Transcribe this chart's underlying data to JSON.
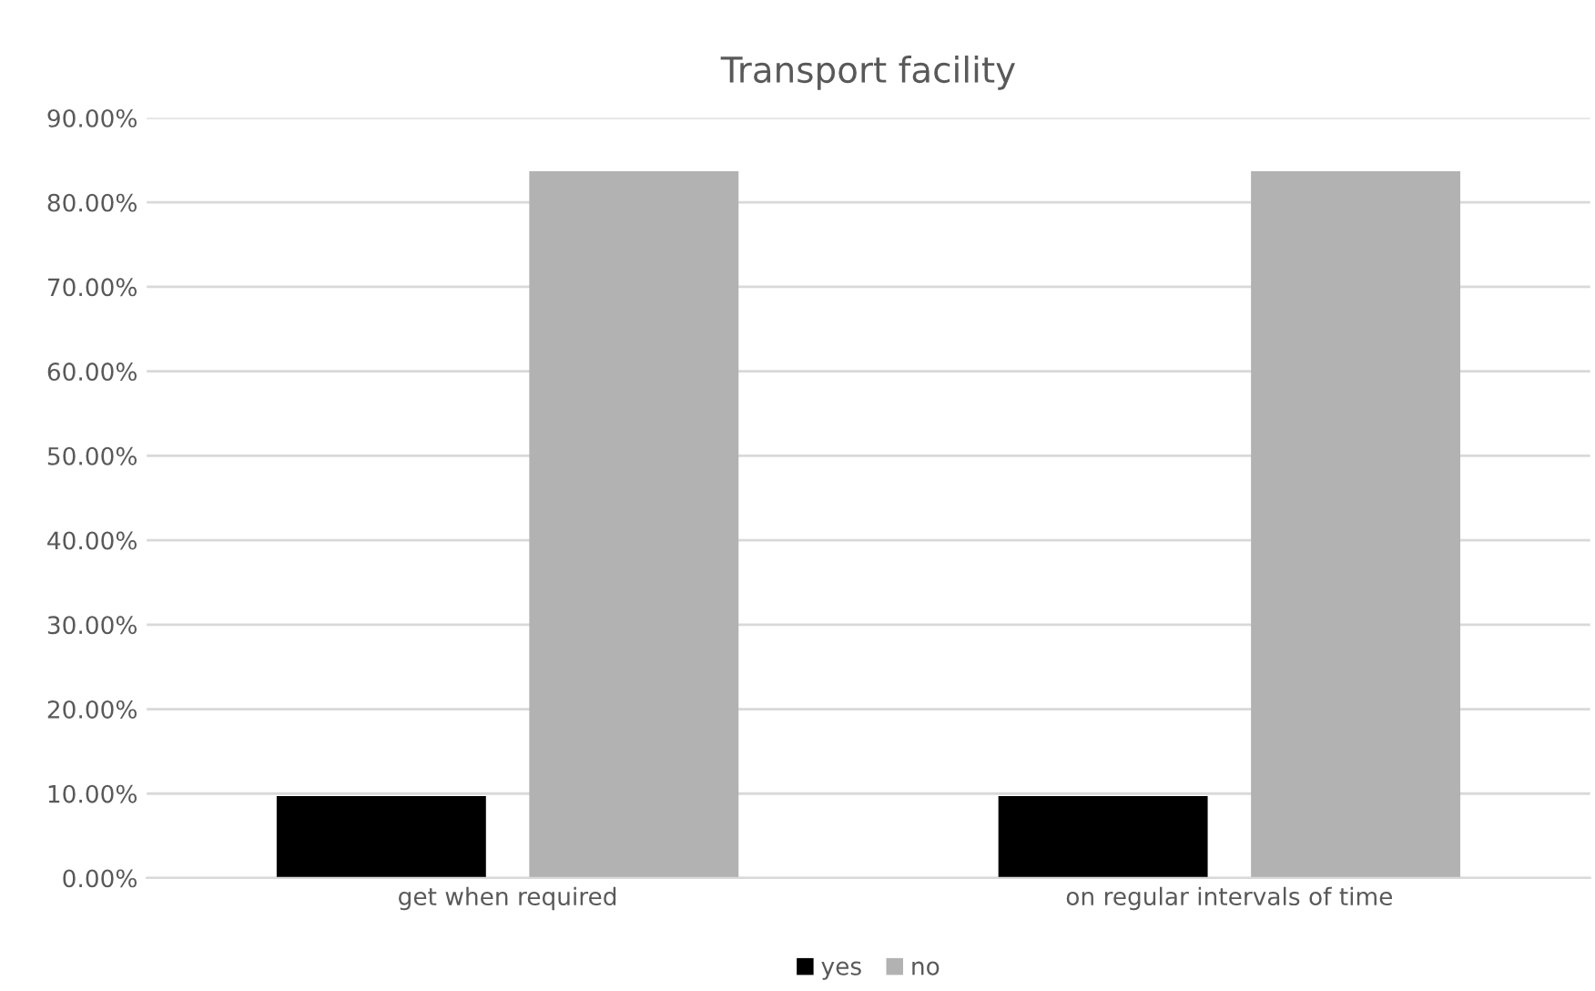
{
  "chart_data": {
    "type": "bar",
    "title": "Transport facility",
    "categories": [
      "get when required",
      "on regular intervals of time"
    ],
    "series": [
      {
        "name": "yes",
        "color": "#000000",
        "values": [
          9.7,
          9.7
        ]
      },
      {
        "name": "no",
        "color": "#b2b2b2",
        "values": [
          83.7,
          83.7
        ]
      }
    ],
    "ylim": [
      0,
      90
    ],
    "yticks": [
      {
        "value": 0,
        "label": "0.00%"
      },
      {
        "value": 10,
        "label": "10.00%"
      },
      {
        "value": 20,
        "label": "20.00%"
      },
      {
        "value": 30,
        "label": "30.00%"
      },
      {
        "value": 40,
        "label": "40.00%"
      },
      {
        "value": 50,
        "label": "50.00%"
      },
      {
        "value": 60,
        "label": "60.00%"
      },
      {
        "value": 70,
        "label": "70.00%"
      },
      {
        "value": 80,
        "label": "80.00%"
      },
      {
        "value": 90,
        "label": "90.00%"
      }
    ],
    "grid": "y",
    "legend": "bottom"
  }
}
